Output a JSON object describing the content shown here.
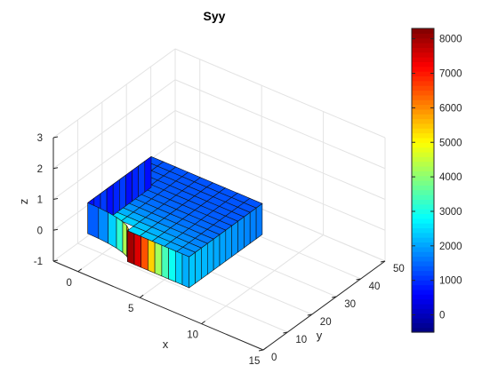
{
  "chart_data": {
    "type": "surface3d",
    "title": "Syy",
    "xlabel": "x",
    "ylabel": "y",
    "zlabel": "z",
    "xlim": [
      -2,
      15
    ],
    "ylim": [
      0,
      50
    ],
    "zlim": [
      -1,
      3
    ],
    "xticks": [
      "0",
      "5",
      "10",
      "15"
    ],
    "yticks": [
      "0",
      "10",
      "20",
      "30",
      "40",
      "50"
    ],
    "zticks": [
      "-1",
      "0",
      "1",
      "2",
      "3"
    ],
    "grid": true,
    "colormap": "jet",
    "colorbar": {
      "placement": "right",
      "range": [
        -500,
        8300
      ],
      "ticks": [
        "0",
        "1000",
        "2000",
        "3000",
        "4000",
        "5000",
        "6000",
        "7000",
        "8000"
      ],
      "tick_values": [
        0,
        1000,
        2000,
        3000,
        4000,
        5000,
        6000,
        7000,
        8000
      ]
    },
    "solid": {
      "x_range": [
        0,
        9
      ],
      "y_range": [
        0,
        30
      ],
      "z_range": [
        0,
        1
      ],
      "notch": {
        "description": "curved fillet cut at front-left face",
        "hole_radius": 4
      },
      "stress_range": [
        -500,
        8300
      ],
      "peak_stress": 8000
    }
  }
}
